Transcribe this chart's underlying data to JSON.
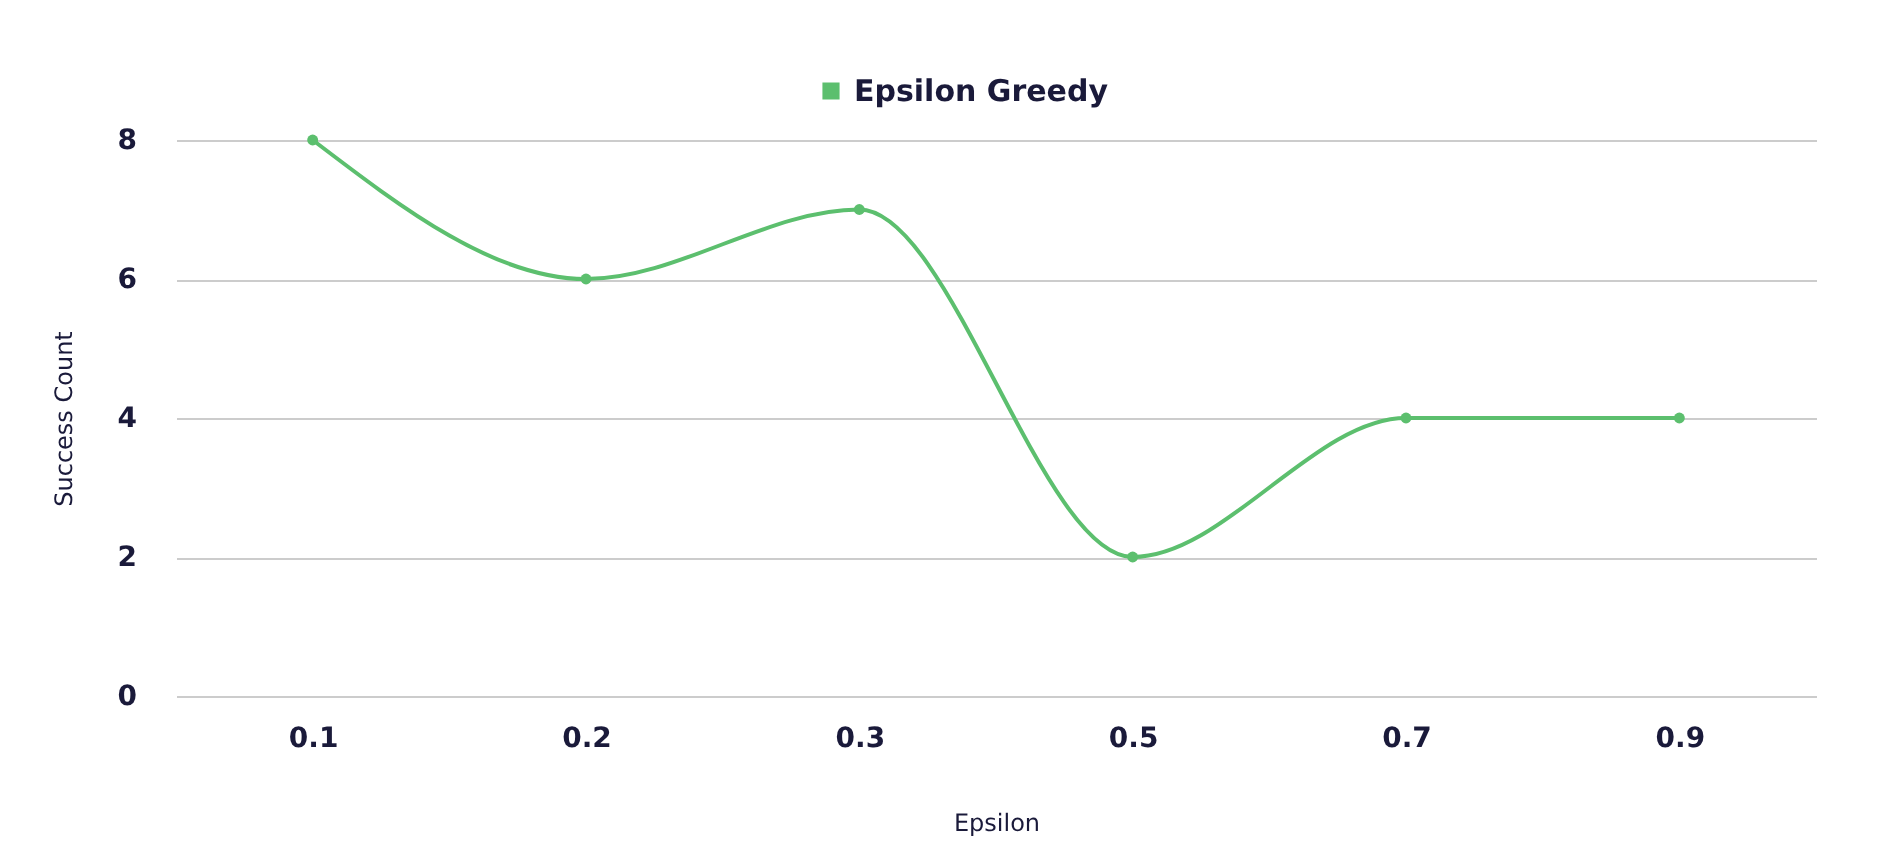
{
  "chart_data": {
    "type": "line",
    "xlabel": "Epsilon",
    "ylabel": "Success Count",
    "categories": [
      "0.1",
      "0.2",
      "0.3",
      "0.5",
      "0.7",
      "0.9"
    ],
    "series": [
      {
        "name": "Epsilon Greedy",
        "color": "#5cbf6e",
        "values": [
          8,
          6,
          7,
          2,
          4,
          4
        ]
      }
    ],
    "ylim": [
      0,
      8
    ],
    "yticks": [
      0,
      2,
      4,
      6,
      8
    ],
    "grid": "y",
    "legend": "top",
    "marker": "circle",
    "line_style": "solid"
  }
}
